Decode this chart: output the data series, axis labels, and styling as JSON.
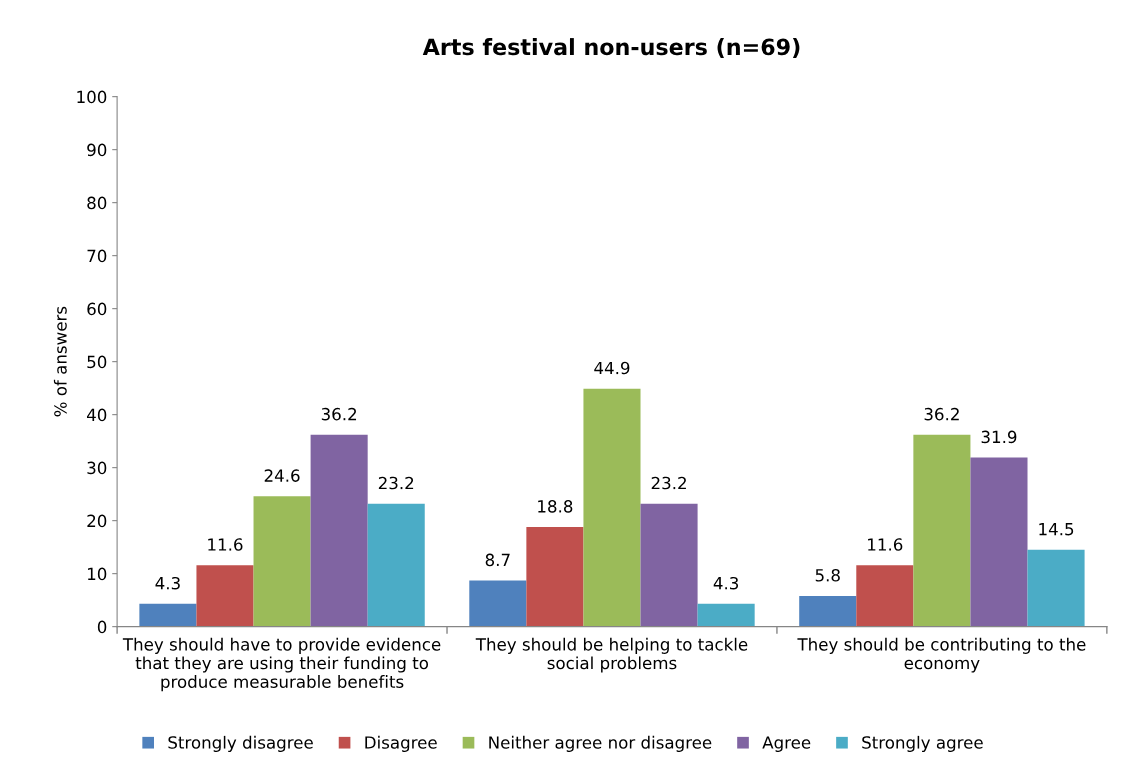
{
  "chart_data": {
    "type": "bar",
    "title": "Arts festival non-users (n=69)",
    "ylabel": "% of answers",
    "categories": [
      "They should have to provide evidence\nthat they are using their funding to\nproduce measurable benefits",
      "They should be helping to tackle\nsocial problems",
      "They should be contributing to the\neconomy"
    ],
    "series": [
      {
        "name": "Strongly disagree",
        "color": "#4f81bd",
        "values": [
          4.3,
          8.7,
          5.8
        ]
      },
      {
        "name": "Disagree",
        "color": "#c0504d",
        "values": [
          11.6,
          18.8,
          11.6
        ]
      },
      {
        "name": "Neither agree nor disagree",
        "color": "#9bbb59",
        "values": [
          24.6,
          44.9,
          36.2
        ]
      },
      {
        "name": "Agree",
        "color": "#8064a2",
        "values": [
          36.2,
          23.2,
          31.9
        ]
      },
      {
        "name": "Strongly agree",
        "color": "#4bacc6",
        "values": [
          23.2,
          4.3,
          14.5
        ]
      }
    ],
    "ylim": [
      0,
      100
    ],
    "yticks": [
      0,
      10,
      20,
      30,
      40,
      50,
      60,
      70,
      80,
      90,
      100
    ],
    "grid": false,
    "legend": "bottom",
    "data_labels": true
  }
}
